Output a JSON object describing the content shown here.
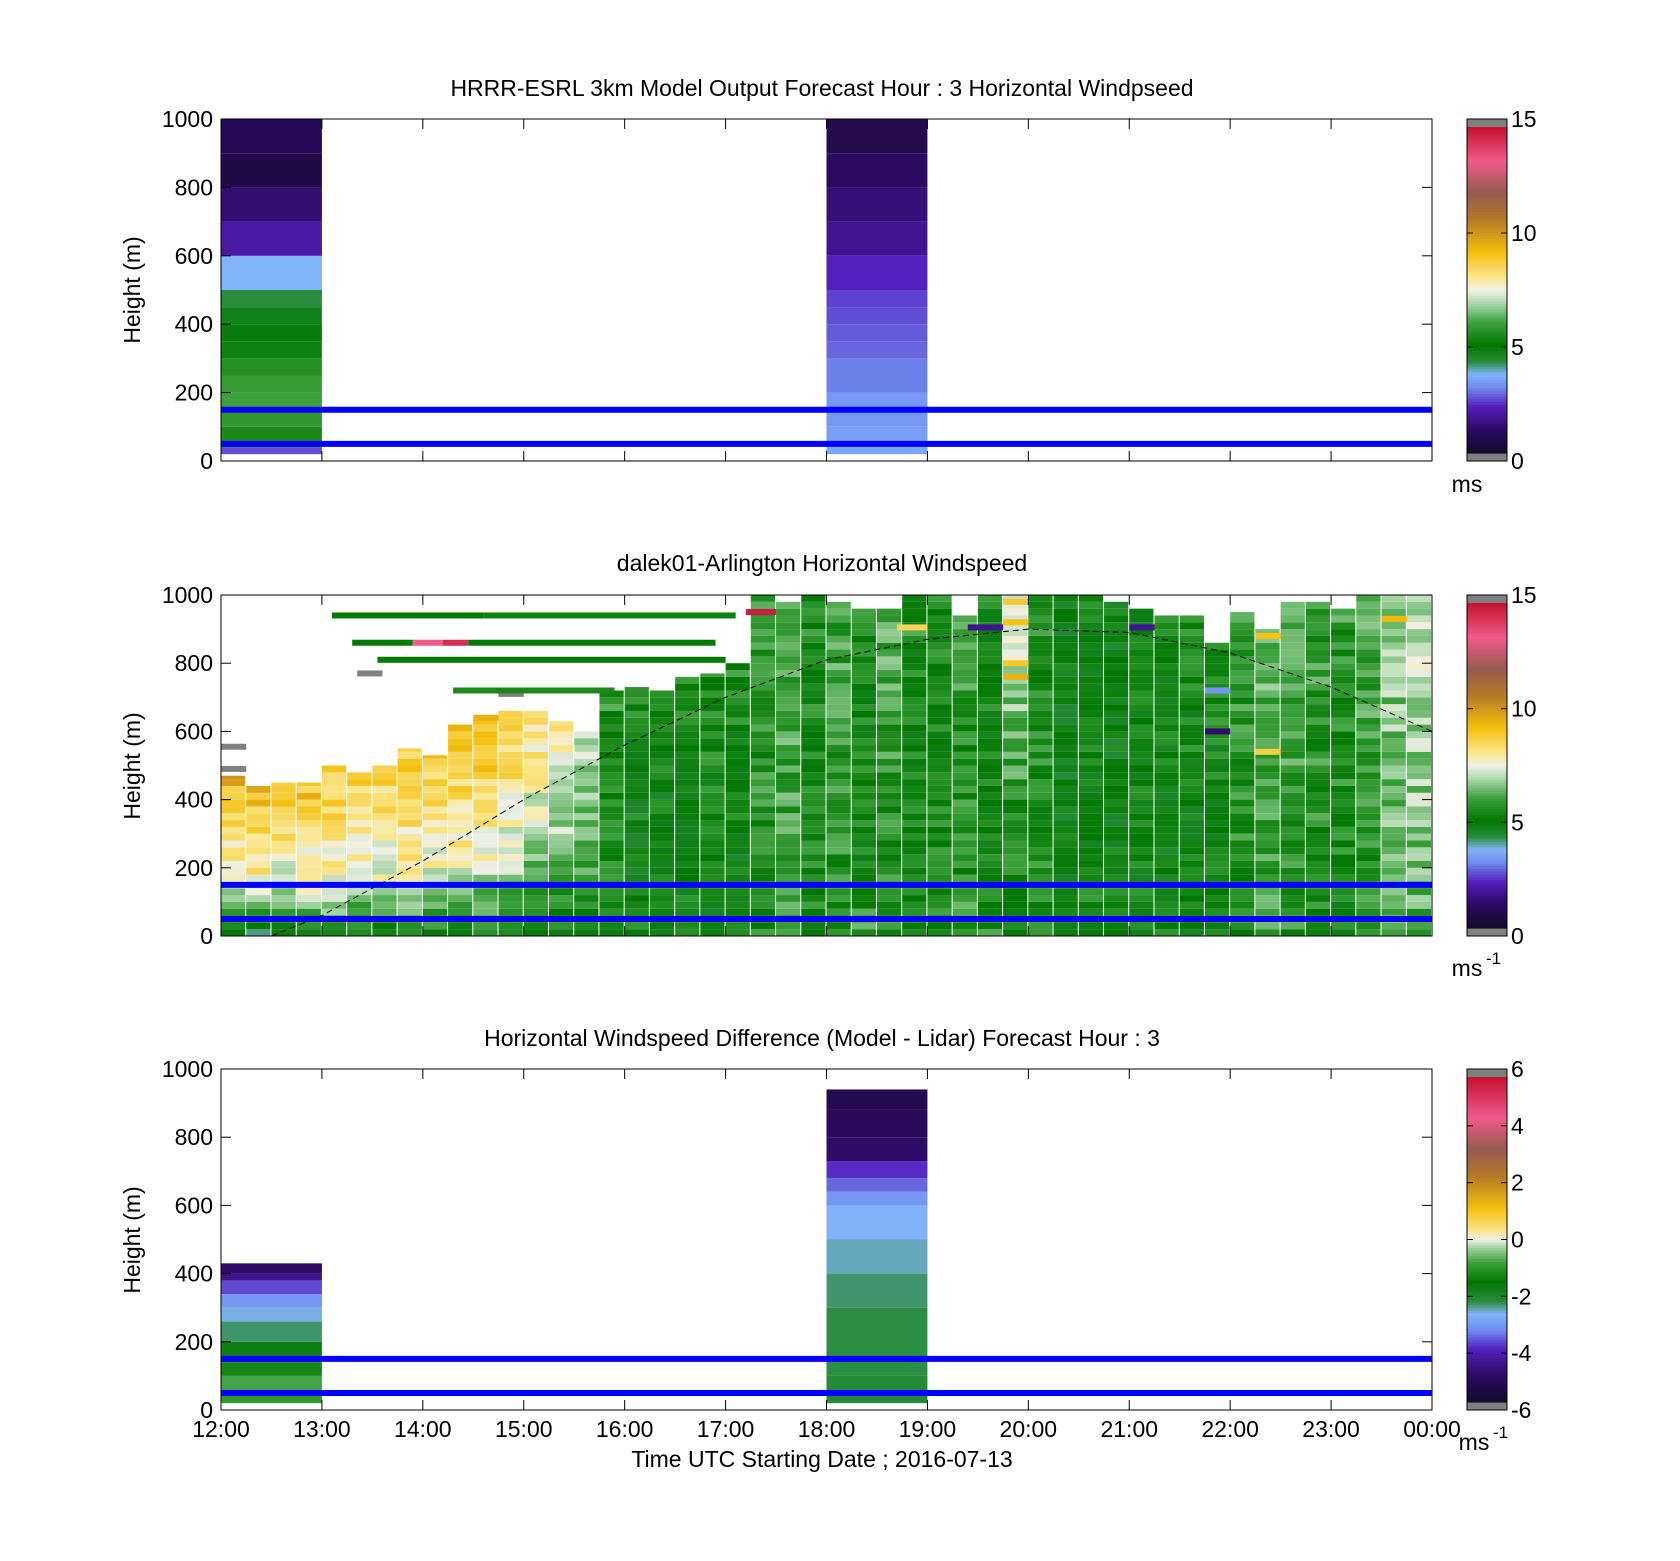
{
  "figure": {
    "xlabel": "Time UTC  Starting Date ; 2016-07-13",
    "xtick_labels": [
      "12:00",
      "13:00",
      "14:00",
      "15:00",
      "16:00",
      "17:00",
      "18:00",
      "19:00",
      "20:00",
      "21:00",
      "22:00",
      "23:00",
      "00:00"
    ]
  },
  "colors": {
    "ref_line": "#0000ff",
    "axis": "#000000",
    "bg": "#ffffff"
  },
  "chart_data": [
    {
      "type": "heatmap",
      "title": "HRRR-ESRL 3km Model Output   Forecast Hour : 3 Horizontal Windpseed",
      "ylabel": "Height (m)",
      "ylim": [
        0,
        1000
      ],
      "yticks": [
        0,
        200,
        400,
        600,
        800,
        1000
      ],
      "xlim_hours": [
        12,
        24
      ],
      "colorbar": {
        "min": 0,
        "max": 15,
        "ticks": [
          0,
          5,
          10,
          15
        ],
        "unit": "ms",
        "unit_sup": "",
        "palette": "speed"
      },
      "reference_heights_m": [
        50,
        150
      ],
      "columns": [
        {
          "start_hour": 12,
          "end_hour": 13,
          "bins": [
            {
              "y0": 20,
              "y1": 40,
              "v": 2.5
            },
            {
              "y0": 40,
              "y1": 60,
              "v": 4.8
            },
            {
              "y0": 60,
              "y1": 100,
              "v": 5.4
            },
            {
              "y0": 100,
              "y1": 150,
              "v": 5.8
            },
            {
              "y0": 150,
              "y1": 200,
              "v": 6.0
            },
            {
              "y0": 200,
              "y1": 250,
              "v": 5.9
            },
            {
              "y0": 250,
              "y1": 300,
              "v": 5.6
            },
            {
              "y0": 300,
              "y1": 350,
              "v": 5.2
            },
            {
              "y0": 350,
              "y1": 400,
              "v": 4.8
            },
            {
              "y0": 400,
              "y1": 450,
              "v": 4.6
            },
            {
              "y0": 450,
              "y1": 500,
              "v": 4.2
            },
            {
              "y0": 500,
              "y1": 600,
              "v": 3.6
            },
            {
              "y0": 600,
              "y1": 700,
              "v": 1.8
            },
            {
              "y0": 700,
              "y1": 800,
              "v": 1.2
            },
            {
              "y0": 800,
              "y1": 900,
              "v": 0.5
            },
            {
              "y0": 900,
              "y1": 1000,
              "v": 0.8
            }
          ]
        },
        {
          "start_hour": 18,
          "end_hour": 19,
          "bins": [
            {
              "y0": 20,
              "y1": 50,
              "v": 3.4
            },
            {
              "y0": 50,
              "y1": 100,
              "v": 3.3
            },
            {
              "y0": 100,
              "y1": 200,
              "v": 3.2
            },
            {
              "y0": 200,
              "y1": 300,
              "v": 2.9
            },
            {
              "y0": 300,
              "y1": 350,
              "v": 2.7
            },
            {
              "y0": 350,
              "y1": 400,
              "v": 2.6
            },
            {
              "y0": 400,
              "y1": 450,
              "v": 2.5
            },
            {
              "y0": 450,
              "y1": 500,
              "v": 2.4
            },
            {
              "y0": 500,
              "y1": 600,
              "v": 2.1
            },
            {
              "y0": 600,
              "y1": 700,
              "v": 1.6
            },
            {
              "y0": 700,
              "y1": 800,
              "v": 1.3
            },
            {
              "y0": 800,
              "y1": 900,
              "v": 1.0
            },
            {
              "y0": 900,
              "y1": 1000,
              "v": 0.6
            }
          ]
        }
      ]
    },
    {
      "type": "heatmap",
      "title": "dalek01-Arlington  Horizontal Windspeed",
      "ylabel": "Height (m)",
      "ylim": [
        0,
        1000
      ],
      "yticks": [
        0,
        200,
        400,
        600,
        800,
        1000
      ],
      "xlim_hours": [
        12,
        24
      ],
      "colorbar": {
        "min": 0,
        "max": 15,
        "ticks": [
          0,
          5,
          10,
          15
        ],
        "unit": "ms",
        "unit_sup": "-1",
        "palette": "speed"
      },
      "reference_heights_m": [
        50,
        150
      ],
      "boundary_layer_curve": {
        "start_hour": 12.5,
        "end_hour": 24,
        "points": [
          [
            12.5,
            0
          ],
          [
            13,
            60
          ],
          [
            14,
            220
          ],
          [
            15,
            400
          ],
          [
            16,
            560
          ],
          [
            17,
            700
          ],
          [
            18,
            810
          ],
          [
            19,
            870
          ],
          [
            20,
            900
          ],
          [
            21,
            890
          ],
          [
            22,
            830
          ],
          [
            23,
            730
          ],
          [
            24,
            600
          ]
        ]
      },
      "profile_columns": [
        {
          "h": 12.0,
          "top": 470,
          "surf": 5.0,
          "mid": 7.5,
          "up": 9.6
        },
        {
          "h": 12.25,
          "top": 440,
          "surf": 4.5,
          "mid": 7.6,
          "up": 9.4
        },
        {
          "h": 12.5,
          "top": 450,
          "surf": 4.8,
          "mid": 7.2,
          "up": 9.2
        },
        {
          "h": 12.75,
          "top": 450,
          "surf": 5.0,
          "mid": 7.4,
          "up": 9.3
        },
        {
          "h": 13.0,
          "top": 500,
          "surf": 5.2,
          "mid": 7.6,
          "up": 9.2
        },
        {
          "h": 13.25,
          "top": 480,
          "surf": 5.0,
          "mid": 7.5,
          "up": 9.0
        },
        {
          "h": 13.5,
          "top": 500,
          "surf": 4.9,
          "mid": 7.4,
          "up": 8.8
        },
        {
          "h": 13.75,
          "top": 550,
          "surf": 5.0,
          "mid": 7.6,
          "up": 9.0
        },
        {
          "h": 14.0,
          "top": 530,
          "surf": 5.1,
          "mid": 7.4,
          "up": 8.9
        },
        {
          "h": 14.25,
          "top": 620,
          "surf": 5.0,
          "mid": 7.6,
          "up": 9.4
        },
        {
          "h": 14.5,
          "top": 640,
          "surf": 5.1,
          "mid": 7.3,
          "up": 9.5
        },
        {
          "h": 14.75,
          "top": 660,
          "surf": 5.0,
          "mid": 7.0,
          "up": 9.2
        },
        {
          "h": 15.0,
          "top": 660,
          "surf": 5.0,
          "mid": 6.6,
          "up": 8.6
        },
        {
          "h": 15.25,
          "top": 630,
          "surf": 5.0,
          "mid": 6.4,
          "up": 8.0
        },
        {
          "h": 15.5,
          "top": 600,
          "surf": 5.0,
          "mid": 6.0,
          "up": 7.4
        },
        {
          "h": 15.75,
          "top": 720,
          "surf": 5.2,
          "mid": 5.4,
          "up": 5.6
        },
        {
          "h": 16.0,
          "top": 730,
          "surf": 5.2,
          "mid": 5.0,
          "up": 5.4
        },
        {
          "h": 16.25,
          "top": 720,
          "surf": 5.3,
          "mid": 5.0,
          "up": 5.2
        },
        {
          "h": 16.5,
          "top": 760,
          "surf": 5.2,
          "mid": 5.0,
          "up": 5.4
        },
        {
          "h": 16.75,
          "top": 770,
          "surf": 5.1,
          "mid": 5.1,
          "up": 5.5
        },
        {
          "h": 17.0,
          "top": 800,
          "surf": 5.1,
          "mid": 5.1,
          "up": 5.5
        },
        {
          "h": 17.25,
          "top": 1000,
          "surf": 5.6,
          "mid": 5.6,
          "up": 5.8
        },
        {
          "h": 17.5,
          "top": 980,
          "surf": 5.8,
          "mid": 5.9,
          "up": 6.2
        },
        {
          "h": 17.75,
          "top": 1000,
          "surf": 5.4,
          "mid": 5.3,
          "up": 5.5
        },
        {
          "h": 18.0,
          "top": 980,
          "surf": 5.6,
          "mid": 5.7,
          "up": 6.0
        },
        {
          "h": 18.25,
          "top": 960,
          "surf": 5.8,
          "mid": 5.2,
          "up": 5.4
        },
        {
          "h": 18.5,
          "top": 960,
          "surf": 5.7,
          "mid": 5.6,
          "up": 6.2
        },
        {
          "h": 18.75,
          "top": 1000,
          "surf": 5.4,
          "mid": 5.2,
          "up": 5.6
        },
        {
          "h": 19.0,
          "top": 1000,
          "surf": 5.6,
          "mid": 5.3,
          "up": 5.4
        },
        {
          "h": 19.25,
          "top": 940,
          "surf": 5.8,
          "mid": 5.6,
          "up": 5.8
        },
        {
          "h": 19.5,
          "top": 1000,
          "surf": 5.5,
          "mid": 5.2,
          "up": 5.3
        },
        {
          "h": 19.75,
          "top": 1000,
          "surf": 5.4,
          "mid": 5.3,
          "up": 7.8
        },
        {
          "h": 20.0,
          "top": 1000,
          "surf": 5.6,
          "mid": 5.4,
          "up": 5.6
        },
        {
          "h": 20.25,
          "top": 1000,
          "surf": 5.2,
          "mid": 4.8,
          "up": 4.9
        },
        {
          "h": 20.5,
          "top": 1000,
          "surf": 5.4,
          "mid": 5.0,
          "up": 5.1
        },
        {
          "h": 20.75,
          "top": 980,
          "surf": 5.6,
          "mid": 4.9,
          "up": 5.0
        },
        {
          "h": 21.0,
          "top": 960,
          "surf": 5.3,
          "mid": 5.0,
          "up": 5.2
        },
        {
          "h": 21.25,
          "top": 940,
          "surf": 5.2,
          "mid": 4.9,
          "up": 5.3
        },
        {
          "h": 21.5,
          "top": 940,
          "surf": 5.2,
          "mid": 5.1,
          "up": 5.4
        },
        {
          "h": 21.75,
          "top": 860,
          "surf": 5.0,
          "mid": 5.1,
          "up": 5.5
        },
        {
          "h": 22.0,
          "top": 950,
          "surf": 5.4,
          "mid": 5.6,
          "up": 5.8
        },
        {
          "h": 22.25,
          "top": 900,
          "surf": 5.8,
          "mid": 6.0,
          "up": 6.2
        },
        {
          "h": 22.5,
          "top": 980,
          "surf": 5.6,
          "mid": 5.8,
          "up": 6.1
        },
        {
          "h": 22.75,
          "top": 980,
          "surf": 5.4,
          "mid": 5.6,
          "up": 5.9
        },
        {
          "h": 23.0,
          "top": 960,
          "surf": 5.2,
          "mid": 5.4,
          "up": 5.8
        },
        {
          "h": 23.25,
          "top": 1000,
          "surf": 5.6,
          "mid": 5.8,
          "up": 6.0
        },
        {
          "h": 23.5,
          "top": 1000,
          "surf": 6.2,
          "mid": 6.4,
          "up": 6.8
        },
        {
          "h": 23.75,
          "top": 1000,
          "surf": 6.0,
          "mid": 6.6,
          "up": 7.2
        }
      ],
      "sparse_segments": [
        {
          "h0": 12.0,
          "h1": 12.25,
          "y": 555,
          "v": 0
        },
        {
          "h0": 12.0,
          "h1": 12.25,
          "y": 490,
          "v": 0
        },
        {
          "h0": 13.35,
          "h1": 13.6,
          "y": 770,
          "v": 0
        },
        {
          "h0": 14.75,
          "h1": 15.0,
          "y": 710,
          "v": 0
        },
        {
          "h0": 14.5,
          "h1": 14.75,
          "y": 640,
          "v": 9.6
        },
        {
          "h0": 13.1,
          "h1": 14.6,
          "y": 940,
          "v": 5.0
        },
        {
          "h0": 14.6,
          "h1": 17.1,
          "y": 940,
          "v": 5.2
        },
        {
          "h0": 13.3,
          "h1": 13.9,
          "y": 860,
          "v": 5.0
        },
        {
          "h0": 13.9,
          "h1": 14.2,
          "y": 860,
          "v": 13.5
        },
        {
          "h0": 14.2,
          "h1": 14.45,
          "y": 860,
          "v": 14.5
        },
        {
          "h0": 14.45,
          "h1": 16.9,
          "y": 860,
          "v": 5.0
        },
        {
          "h0": 13.55,
          "h1": 17.0,
          "y": 810,
          "v": 5.0
        },
        {
          "h0": 14.3,
          "h1": 15.9,
          "y": 720,
          "v": 5.4
        },
        {
          "h0": 17.2,
          "h1": 17.5,
          "y": 950,
          "v": 14.8
        },
        {
          "h0": 19.75,
          "h1": 20.0,
          "y": 980,
          "v": 9.0
        },
        {
          "h0": 19.75,
          "h1": 20.0,
          "y": 920,
          "v": 9.2
        },
        {
          "h0": 19.75,
          "h1": 20.0,
          "y": 800,
          "v": 9.0
        },
        {
          "h0": 19.75,
          "h1": 20.0,
          "y": 760,
          "v": 9.6
        },
        {
          "h0": 19.4,
          "h1": 19.75,
          "y": 905,
          "v": 1.5
        },
        {
          "h0": 21.0,
          "h1": 21.25,
          "y": 905,
          "v": 1.6
        },
        {
          "h0": 18.7,
          "h1": 19.0,
          "y": 905,
          "v": 8.6
        },
        {
          "h0": 21.75,
          "h1": 22.0,
          "y": 600,
          "v": 1.2
        },
        {
          "h0": 21.75,
          "h1": 22.0,
          "y": 720,
          "v": 3.2
        },
        {
          "h0": 22.25,
          "h1": 22.5,
          "y": 880,
          "v": 9.2
        },
        {
          "h0": 22.25,
          "h1": 22.5,
          "y": 540,
          "v": 8.8
        },
        {
          "h0": 23.5,
          "h1": 23.75,
          "y": 930,
          "v": 9.4
        }
      ]
    },
    {
      "type": "heatmap",
      "title": "Horizontal Windspeed Difference (Model - Lidar) Forecast Hour : 3",
      "ylabel": "Height (m)",
      "ylim": [
        0,
        1000
      ],
      "yticks": [
        0,
        200,
        400,
        600,
        800,
        1000
      ],
      "xlim_hours": [
        12,
        24
      ],
      "colorbar": {
        "min": -6,
        "max": 6,
        "ticks": [
          -6,
          -4,
          -2,
          0,
          2,
          4,
          6
        ],
        "unit": "ms",
        "unit_sup": "-1",
        "palette": "diff"
      },
      "reference_heights_m": [
        50,
        150
      ],
      "columns": [
        {
          "start_hour": 12,
          "end_hour": 13,
          "bins": [
            {
              "y0": 20,
              "y1": 60,
              "v": -1.0
            },
            {
              "y0": 60,
              "y1": 100,
              "v": -0.8
            },
            {
              "y0": 100,
              "y1": 140,
              "v": -1.3
            },
            {
              "y0": 140,
              "y1": 200,
              "v": -1.8
            },
            {
              "y0": 200,
              "y1": 260,
              "v": -2.4
            },
            {
              "y0": 260,
              "y1": 300,
              "v": -2.7
            },
            {
              "y0": 300,
              "y1": 340,
              "v": -3.2
            },
            {
              "y0": 340,
              "y1": 380,
              "v": -3.8
            },
            {
              "y0": 380,
              "y1": 400,
              "v": -4.6
            },
            {
              "y0": 400,
              "y1": 430,
              "v": -5.0
            }
          ]
        },
        {
          "start_hour": 18,
          "end_hour": 19,
          "bins": [
            {
              "y0": 20,
              "y1": 100,
              "v": -2.2
            },
            {
              "y0": 100,
              "y1": 300,
              "v": -2.3
            },
            {
              "y0": 300,
              "y1": 400,
              "v": -2.4
            },
            {
              "y0": 400,
              "y1": 500,
              "v": -2.6
            },
            {
              "y0": 500,
              "y1": 600,
              "v": -2.8
            },
            {
              "y0": 600,
              "y1": 640,
              "v": -3.2
            },
            {
              "y0": 640,
              "y1": 680,
              "v": -3.6
            },
            {
              "y0": 680,
              "y1": 730,
              "v": -4.0
            },
            {
              "y0": 730,
              "y1": 800,
              "v": -5.0
            },
            {
              "y0": 800,
              "y1": 880,
              "v": -5.2
            },
            {
              "y0": 880,
              "y1": 940,
              "v": -5.4
            }
          ]
        }
      ]
    }
  ]
}
